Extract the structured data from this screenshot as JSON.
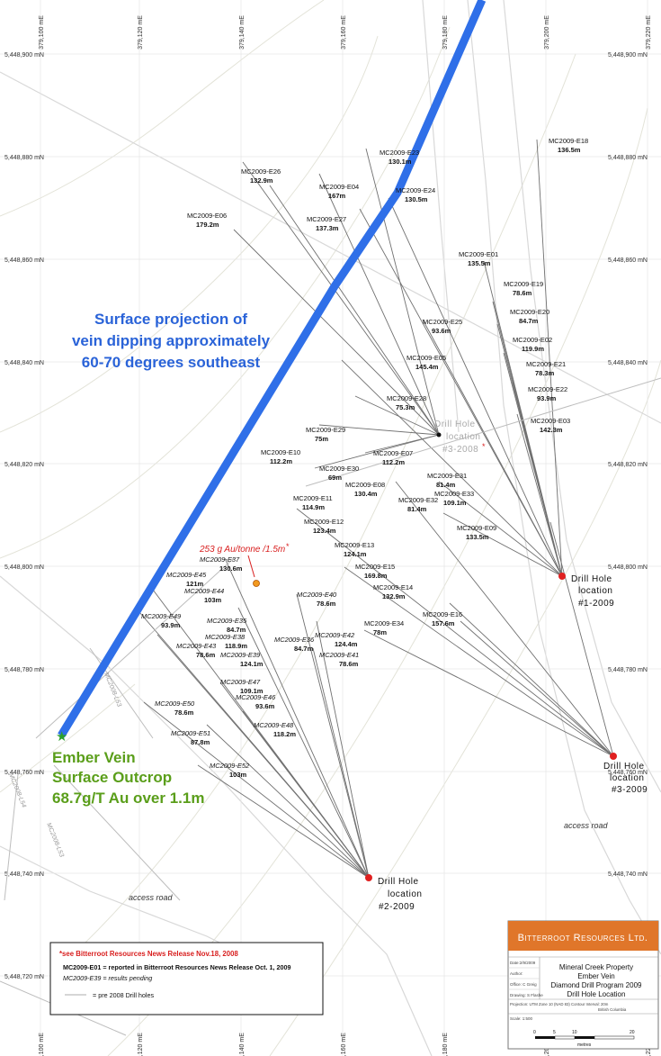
{
  "map": {
    "grid": {
      "eastings": [
        "379,100 mE",
        "379,120 mE",
        "379,140 mE",
        "379,160 mE",
        "379,180 mE",
        "379,200 mE",
        "379,220 mE"
      ],
      "northings": [
        "5,448,900 mN",
        "5,448,880 mN",
        "5,448,860 mN",
        "5,448,840 mN",
        "5,448,820 mN",
        "5,448,800 mN",
        "5,448,780 mN",
        "5,448,760 mN",
        "5,448,740 mN",
        "5,448,720 mN"
      ]
    },
    "vein_annotation": [
      "Surface projection of",
      "vein dipping approximately",
      "60-70 degrees southeast"
    ],
    "outcrop": [
      "Ember Vein",
      "Surface Outcrop",
      "68.7g/T Au over 1.1m"
    ],
    "sample_note": "253 g Au/tonne /1.5m",
    "sample_star": "*",
    "access_road": "access road",
    "drill_locations": [
      {
        "lines": [
          "Drill Hole",
          "location",
          "#1-2009"
        ]
      },
      {
        "lines": [
          "Drill Hole",
          "location",
          "#3-2009"
        ]
      },
      {
        "lines": [
          "Drill Hole",
          "location",
          "#2-2009"
        ]
      },
      {
        "lines": [
          "Drill Hole",
          "location",
          "#3-2008"
        ],
        "star": "*"
      }
    ],
    "holes": [
      {
        "name": "MC2009-E18",
        "len": "136.5m"
      },
      {
        "name": "MC2009-E23",
        "len": "130.1m"
      },
      {
        "name": "MC2009-E26",
        "len": "132.9m"
      },
      {
        "name": "MC2009-E04",
        "len": "167m"
      },
      {
        "name": "MC2009-E24",
        "len": "130.5m"
      },
      {
        "name": "MC2009-E06",
        "len": "179.2m"
      },
      {
        "name": "MC2009-E27",
        "len": "137.3m"
      },
      {
        "name": "MC2009-E01",
        "len": "135.5m"
      },
      {
        "name": "MC2009-E19",
        "len": "78.6m"
      },
      {
        "name": "MC2009-E20",
        "len": "84.7m"
      },
      {
        "name": "MC2009-E25",
        "len": "93.6m"
      },
      {
        "name": "MC2009-E02",
        "len": "119.9m"
      },
      {
        "name": "MC2009-E05",
        "len": "145.4m"
      },
      {
        "name": "MC2009-E21",
        "len": "78.3m"
      },
      {
        "name": "MC2009-E22",
        "len": "93.9m"
      },
      {
        "name": "MC2009-E28",
        "len": "75.3m"
      },
      {
        "name": "MC2009-E03",
        "len": "142.3m"
      },
      {
        "name": "MC2009-E29",
        "len": "75m"
      },
      {
        "name": "MC2009-E10",
        "len": "112.2m"
      },
      {
        "name": "MC2009-E07",
        "len": "112.2m"
      },
      {
        "name": "MC2009-E30",
        "len": "69m"
      },
      {
        "name": "MC2009-E31",
        "len": "81.4m"
      },
      {
        "name": "MC2009-E08",
        "len": "130.4m"
      },
      {
        "name": "MC2009-E11",
        "len": "114.9m"
      },
      {
        "name": "MC2009-E32",
        "len": "81.4m"
      },
      {
        "name": "MC2009-E33",
        "len": "109.1m"
      },
      {
        "name": "MC2009-E12",
        "len": "123.4m"
      },
      {
        "name": "MC2009-E09",
        "len": "133.5m"
      },
      {
        "name": "MC2009-E13",
        "len": "124.1m"
      },
      {
        "name": "MC2009-E15",
        "len": "169.8m"
      },
      {
        "name": "MC2009-E14",
        "len": "132.9m"
      },
      {
        "name": "MC2009-E16",
        "len": "157.6m"
      },
      {
        "name": "MC2009-E34",
        "len": "78m"
      }
    ],
    "pending_holes": [
      {
        "name": "MC2009-E37",
        "len": "130.6m"
      },
      {
        "name": "MC2009-E45",
        "len": "121m"
      },
      {
        "name": "MC2009-E44",
        "len": "103m"
      },
      {
        "name": "MC2009-E40",
        "len": "78.6m"
      },
      {
        "name": "MC2009-E49",
        "len": "93.9m"
      },
      {
        "name": "MC2009-E35",
        "len": "84.7m"
      },
      {
        "name": "MC2009-E38",
        "len": "118.9m"
      },
      {
        "name": "MC2009-E36",
        "len": "84.7m"
      },
      {
        "name": "MC2009-E42",
        "len": "124.4m"
      },
      {
        "name": "MC2009-E43",
        "len": "78.6m"
      },
      {
        "name": "MC2009-E39",
        "len": "124.1m"
      },
      {
        "name": "MC2009-E41",
        "len": "78.6m"
      },
      {
        "name": "MC2009-E47",
        "len": "109.1m"
      },
      {
        "name": "MC2009-E46",
        "len": "93.6m"
      },
      {
        "name": "MC2009-E50",
        "len": "78.6m"
      },
      {
        "name": "MC2009-E48",
        "len": "118.2m"
      },
      {
        "name": "MC2009-E51",
        "len": "87.8m"
      },
      {
        "name": "MC2009-E52",
        "len": "103m"
      }
    ],
    "old_holes": [
      "MC2008-L53",
      "MC2008-L54",
      "MC2008-L53"
    ]
  },
  "legend": {
    "line1": "*see Bitterroot Resources News Release Nov.18, 2008",
    "line2": "MC2009-E01 = reported in Bitterroot Resources News Release Oct. 1, 2009",
    "line3": "MC2009-E39 = results pending",
    "line4": "= pre 2008 Drill holes"
  },
  "title_block": {
    "company": "Bitterroot Resources Ltd.",
    "title_lines": [
      "Mineral Creek Property",
      "Ember Vein",
      "Diamond Drill Program 2009",
      "Drill Hole Location"
    ],
    "fields": [
      "Date:2/9/2009",
      "Author:",
      "Office: C Greig",
      "Drawing: S Flashe"
    ],
    "projection": "Projection: UTM Zone 10 (NAD 83)   Contour Interval: 20m",
    "region": "British Columbia",
    "scale": "Scale: 1:500",
    "scalebar_ticks": [
      "0",
      "5",
      "10",
      "20"
    ],
    "scalebar_unit": "metres"
  },
  "colors": {
    "vein": "#2f6fe8",
    "vein_text": "#2a63d8",
    "outcrop_text": "#5a9e1a",
    "drill_dot": "#e02020",
    "title_band": "#e0762a",
    "note_red": "#d81e1e"
  }
}
